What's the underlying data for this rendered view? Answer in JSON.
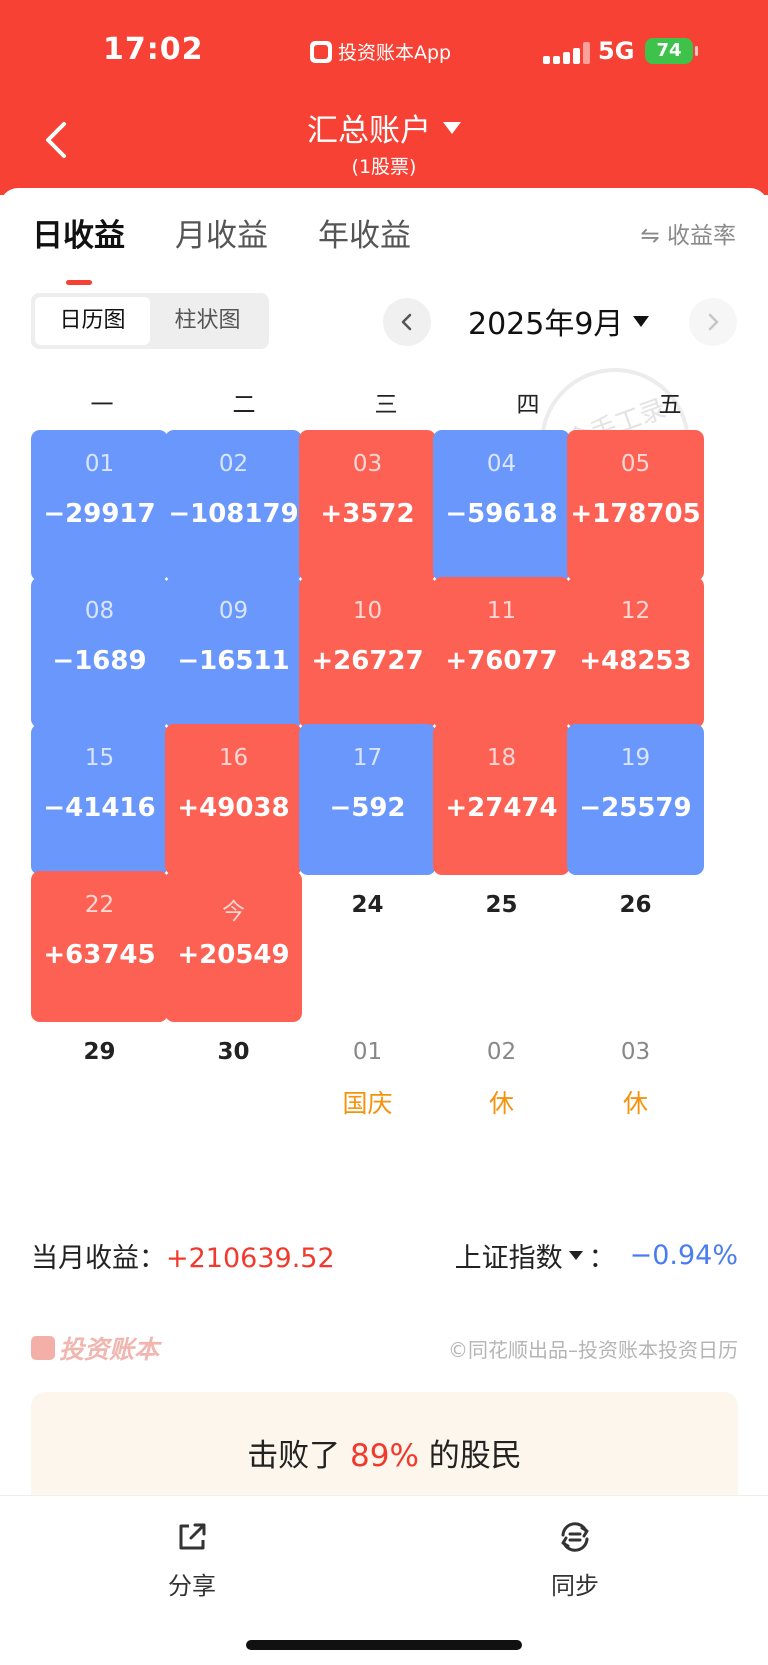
{
  "status_bar": {
    "time": "17:02",
    "app_label": "投资账本App",
    "network": "5G",
    "battery": "74"
  },
  "nav": {
    "title": "汇总账户",
    "subtitle": "(1股票)"
  },
  "tabs": [
    {
      "label": "日收益",
      "active": true
    },
    {
      "label": "月收益",
      "active": false
    },
    {
      "label": "年收益",
      "active": false
    }
  ],
  "rate_toggle": "⇋ 收益率",
  "view_toggle": {
    "calendar": "日历图",
    "bar": "柱状图"
  },
  "month": "2025年9月",
  "watermark": "包含手工录入",
  "weekdays": [
    "一",
    "二",
    "三",
    "四",
    "五"
  ],
  "calendar": {
    "rows": [
      [
        {
          "day": "01",
          "value": "−29917",
          "trend": "down"
        },
        {
          "day": "02",
          "value": "−108179",
          "trend": "down"
        },
        {
          "day": "03",
          "value": "+3572",
          "trend": "up"
        },
        {
          "day": "04",
          "value": "−59618",
          "trend": "down"
        },
        {
          "day": "05",
          "value": "+178705",
          "trend": "up"
        }
      ],
      [
        {
          "day": "08",
          "value": "−1689",
          "trend": "down"
        },
        {
          "day": "09",
          "value": "−16511",
          "trend": "down"
        },
        {
          "day": "10",
          "value": "+26727",
          "trend": "up"
        },
        {
          "day": "11",
          "value": "+76077",
          "trend": "up"
        },
        {
          "day": "12",
          "value": "+48253",
          "trend": "up"
        }
      ],
      [
        {
          "day": "15",
          "value": "−41416",
          "trend": "down"
        },
        {
          "day": "16",
          "value": "+49038",
          "trend": "up"
        },
        {
          "day": "17",
          "value": "−592",
          "trend": "down"
        },
        {
          "day": "18",
          "value": "+27474",
          "trend": "up"
        },
        {
          "day": "19",
          "value": "−25579",
          "trend": "down"
        }
      ],
      [
        {
          "day": "22",
          "value": "+63745",
          "trend": "up"
        },
        {
          "day": "今",
          "value": "+20549",
          "trend": "up"
        },
        {
          "day": "24",
          "value": "",
          "trend": "empty"
        },
        {
          "day": "25",
          "value": "",
          "trend": "empty"
        },
        {
          "day": "26",
          "value": "",
          "trend": "empty"
        }
      ],
      [
        {
          "day": "29",
          "value": "",
          "trend": "empty"
        },
        {
          "day": "30",
          "value": "",
          "trend": "empty"
        },
        {
          "day": "01",
          "value": "",
          "trend": "next",
          "holiday": "国庆"
        },
        {
          "day": "02",
          "value": "",
          "trend": "next",
          "holiday": "休"
        },
        {
          "day": "03",
          "value": "",
          "trend": "next",
          "holiday": "休"
        }
      ]
    ]
  },
  "summary": {
    "month_label": "当月收益：",
    "month_value": "+210639.52",
    "index_label": "上证指数",
    "index_colon": "：",
    "index_value": "−0.94%"
  },
  "brand": {
    "logo_text": "投资账本",
    "credit": "©同花顺出品–投资账本投资日历"
  },
  "beat": {
    "prefix": "击败了 ",
    "pct": "89%",
    "suffix": " 的股民"
  },
  "bottom_bar": {
    "share": "分享",
    "sync": "同步"
  },
  "colors": {
    "header_red": "#f64134",
    "up": "#fc6154",
    "down": "#6a97fb",
    "holiday": "#f5930c"
  }
}
